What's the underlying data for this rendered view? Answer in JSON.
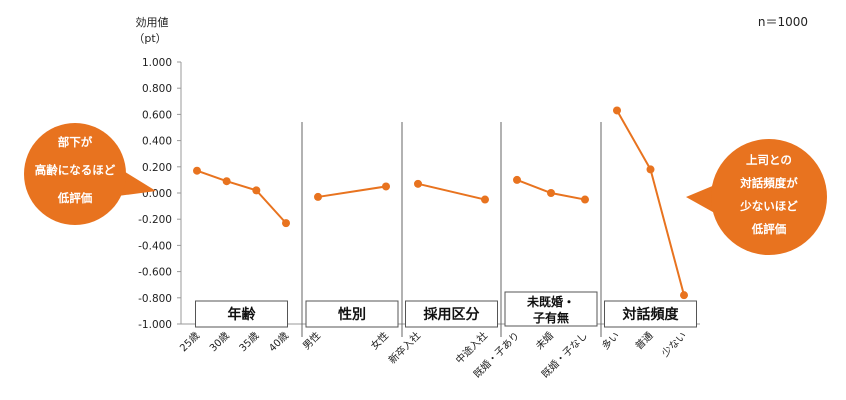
{
  "chart_data": {
    "type": "line",
    "sample_size": "n＝1000",
    "y_unit_label": [
      "効用値",
      "（pt）"
    ],
    "ylim": [
      -1.0,
      1.0
    ],
    "yticks": [
      "1.000",
      "0.800",
      "0.600",
      "0.400",
      "0.200",
      "0.000",
      "-0.200",
      "-0.400",
      "-0.600",
      "-0.800",
      "-1.000"
    ],
    "grid": false,
    "color": "#E8731F",
    "groups": [
      {
        "name": "年齢",
        "categories": [
          "25歳",
          "30歳",
          "35歳",
          "40歳"
        ],
        "values": [
          0.17,
          0.09,
          0.02,
          -0.23
        ]
      },
      {
        "name": "性別",
        "categories": [
          "男性",
          "女性"
        ],
        "values": [
          -0.03,
          0.05
        ]
      },
      {
        "name": "採用区分",
        "categories": [
          "新卒入社",
          "中途入社"
        ],
        "values": [
          0.07,
          -0.05
        ]
      },
      {
        "name": "未既婚・\n子有無",
        "categories": [
          "既婚・子あり",
          "未婚",
          "既婚・子なし"
        ],
        "values": [
          0.1,
          0.0,
          -0.05
        ]
      },
      {
        "name": "対話頻度",
        "categories": [
          "多い",
          "普通",
          "少ない"
        ],
        "values": [
          0.63,
          0.18,
          -0.78
        ]
      }
    ],
    "callouts": [
      {
        "lines": [
          "部下が",
          "高齢になるほど",
          "低評価"
        ]
      },
      {
        "lines": [
          "上司との",
          "対話頻度が",
          "少ないほど",
          "低評価"
        ]
      }
    ]
  }
}
